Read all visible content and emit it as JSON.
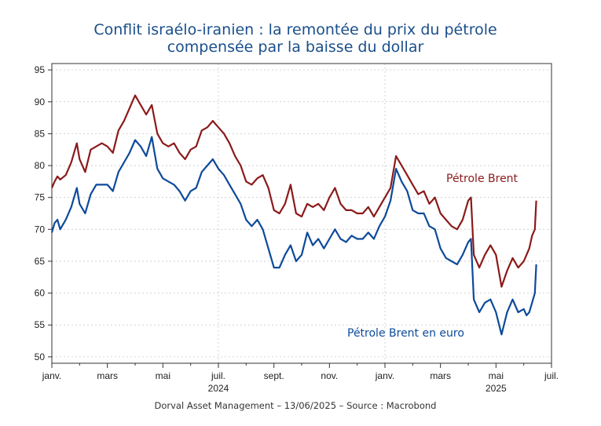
{
  "chart_data": {
    "type": "line",
    "title": [
      "Conflit israélo-iranien : la remontée du prix du pétrole",
      "compensée par la baisse du dollar"
    ],
    "ylim": [
      49,
      96
    ],
    "yticks": [
      50,
      55,
      60,
      65,
      70,
      75,
      80,
      85,
      90,
      95
    ],
    "xticks": [
      {
        "month": 0,
        "label": "janv."
      },
      {
        "month": 2,
        "label": "mars"
      },
      {
        "month": 4,
        "label": "mai"
      },
      {
        "month": 6,
        "label": "juil."
      },
      {
        "month": 8,
        "label": "sept."
      },
      {
        "month": 10,
        "label": "nov."
      },
      {
        "month": 12,
        "label": "janv."
      },
      {
        "month": 14,
        "label": "mars"
      },
      {
        "month": 16,
        "label": "mai"
      },
      {
        "month": 18,
        "label": "juil."
      }
    ],
    "xlim": [
      0,
      18
    ],
    "year_labels": [
      {
        "month": 6,
        "label": "2024"
      },
      {
        "month": 16,
        "label": "2025"
      }
    ],
    "vlines": [
      6,
      12,
      18
    ],
    "grid": "dashed",
    "series": [
      {
        "name": "Pétrole Brent",
        "color": "#8b1a1a",
        "x": [
          0,
          0.1,
          0.2,
          0.3,
          0.5,
          0.7,
          0.9,
          1.0,
          1.2,
          1.4,
          1.6,
          1.8,
          2.0,
          2.2,
          2.4,
          2.6,
          2.8,
          3.0,
          3.2,
          3.4,
          3.6,
          3.8,
          4.0,
          4.2,
          4.4,
          4.6,
          4.8,
          5.0,
          5.2,
          5.4,
          5.6,
          5.8,
          6.0,
          6.2,
          6.4,
          6.6,
          6.8,
          7.0,
          7.2,
          7.4,
          7.6,
          7.8,
          8.0,
          8.2,
          8.4,
          8.6,
          8.8,
          9.0,
          9.2,
          9.4,
          9.6,
          9.8,
          10.0,
          10.2,
          10.4,
          10.6,
          10.8,
          11.0,
          11.2,
          11.4,
          11.6,
          11.8,
          12.0,
          12.2,
          12.4,
          12.6,
          12.8,
          13.0,
          13.2,
          13.4,
          13.6,
          13.8,
          14.0,
          14.2,
          14.4,
          14.6,
          14.8,
          15.0,
          15.1,
          15.2,
          15.4,
          15.6,
          15.8,
          16.0,
          16.2,
          16.4,
          16.6,
          16.8,
          17.0,
          17.1,
          17.2,
          17.3,
          17.4,
          17.45
        ],
        "y": [
          76.5,
          77.5,
          78.3,
          77.8,
          78.5,
          80.5,
          83.5,
          81.0,
          79.0,
          82.5,
          83.0,
          83.5,
          83.0,
          82.0,
          85.5,
          87.0,
          89.0,
          91.0,
          89.5,
          88.0,
          89.5,
          85.0,
          83.5,
          83.0,
          83.5,
          82.0,
          81.0,
          82.5,
          83.0,
          85.5,
          86.0,
          87.0,
          86.0,
          85.0,
          83.5,
          81.5,
          80.0,
          77.5,
          77.0,
          78.0,
          78.5,
          76.5,
          73.0,
          72.5,
          74.0,
          77.0,
          72.5,
          72.0,
          74.0,
          73.5,
          74.0,
          73.0,
          75.0,
          76.5,
          74.0,
          73.0,
          73.0,
          72.5,
          72.5,
          73.5,
          72.0,
          73.5,
          75.0,
          76.5,
          81.5,
          80.0,
          78.5,
          77.0,
          75.5,
          76.0,
          74.0,
          75.0,
          72.5,
          71.5,
          70.5,
          70.0,
          71.5,
          74.5,
          75.0,
          66.0,
          64.0,
          66.0,
          67.5,
          66.0,
          61.0,
          63.5,
          65.5,
          64.0,
          65.0,
          66.0,
          67.0,
          69.0,
          70.0,
          74.5
        ]
      },
      {
        "name": "Pétrole Brent en euro",
        "color": "#0d4a9a",
        "x": [
          0,
          0.1,
          0.2,
          0.3,
          0.5,
          0.7,
          0.9,
          1.0,
          1.2,
          1.4,
          1.6,
          1.8,
          2.0,
          2.2,
          2.4,
          2.6,
          2.8,
          3.0,
          3.2,
          3.4,
          3.6,
          3.8,
          4.0,
          4.2,
          4.4,
          4.6,
          4.8,
          5.0,
          5.2,
          5.4,
          5.6,
          5.8,
          6.0,
          6.2,
          6.4,
          6.6,
          6.8,
          7.0,
          7.2,
          7.4,
          7.6,
          7.8,
          8.0,
          8.2,
          8.4,
          8.6,
          8.8,
          9.0,
          9.2,
          9.4,
          9.6,
          9.8,
          10.0,
          10.2,
          10.4,
          10.6,
          10.8,
          11.0,
          11.2,
          11.4,
          11.6,
          11.8,
          12.0,
          12.2,
          12.4,
          12.6,
          12.8,
          13.0,
          13.2,
          13.4,
          13.6,
          13.8,
          14.0,
          14.2,
          14.4,
          14.6,
          14.8,
          15.0,
          15.1,
          15.2,
          15.4,
          15.6,
          15.8,
          16.0,
          16.2,
          16.4,
          16.6,
          16.8,
          17.0,
          17.1,
          17.2,
          17.3,
          17.4,
          17.45
        ],
        "y": [
          69.5,
          71.0,
          71.5,
          70.0,
          71.5,
          73.5,
          76.5,
          74.0,
          72.5,
          75.5,
          77.0,
          77.0,
          77.0,
          76.0,
          79.0,
          80.5,
          82.0,
          84.0,
          83.0,
          81.5,
          84.5,
          79.5,
          78.0,
          77.5,
          77.0,
          76.0,
          74.5,
          76.0,
          76.5,
          79.0,
          80.0,
          81.0,
          79.5,
          78.5,
          77.0,
          75.5,
          74.0,
          71.5,
          70.5,
          71.5,
          70.0,
          67.0,
          64.0,
          64.0,
          66.0,
          67.5,
          65.0,
          66.0,
          69.5,
          67.5,
          68.5,
          67.0,
          68.5,
          70.0,
          68.5,
          68.0,
          69.0,
          68.5,
          68.5,
          69.5,
          68.5,
          70.5,
          72.0,
          74.5,
          79.5,
          77.5,
          76.0,
          73.0,
          72.5,
          72.5,
          70.5,
          70.0,
          67.0,
          65.5,
          65.0,
          64.5,
          66.0,
          68.0,
          68.5,
          59.0,
          57.0,
          58.5,
          59.0,
          57.0,
          53.5,
          57.0,
          59.0,
          57.0,
          57.5,
          56.5,
          57.0,
          58.5,
          60.0,
          64.5
        ]
      }
    ],
    "labels": {
      "brent": "Pétrole Brent",
      "brent_eur": "Pétrole Brent en euro"
    },
    "footer": "Dorval Asset Management – 13/06/2025  –   Source : Macrobond"
  }
}
